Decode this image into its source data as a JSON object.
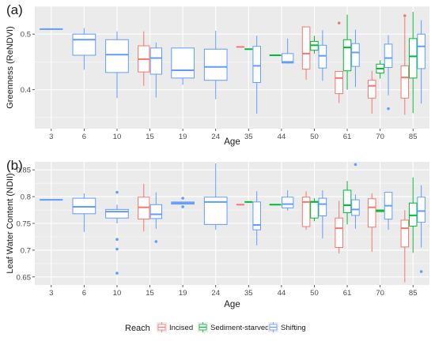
{
  "figure": {
    "legend_title": "Reach",
    "legend_entries": [
      "Incised",
      "Sediment-starved",
      "Shifting"
    ],
    "colors": {
      "Incised": "#F8766D",
      "Sediment-starved": "#00BA38",
      "Shifting": "#619CFF"
    },
    "panel_bg": "#EBEBEB",
    "grid_color": "#FFFFFF"
  },
  "chart_data": [
    {
      "type": "box",
      "panel_label": "(a)",
      "xlabel": "Age",
      "ylabel": "Greenness (ReNDVI)",
      "categories": [
        "3",
        "6",
        "10",
        "15",
        "19",
        "24",
        "35",
        "44",
        "50",
        "61",
        "70",
        "85"
      ],
      "yticks": [
        0.4,
        0.5
      ],
      "ylim": [
        0.33,
        0.55
      ],
      "grid": true,
      "boxes": [
        {
          "cat": "3",
          "reach": "Shifting",
          "min": 0.509,
          "q1": 0.509,
          "median": 0.509,
          "q3": 0.509,
          "max": 0.509,
          "outliers": []
        },
        {
          "cat": "6",
          "reach": "Shifting",
          "min": 0.436,
          "q1": 0.462,
          "median": 0.49,
          "q3": 0.5,
          "max": 0.511,
          "outliers": []
        },
        {
          "cat": "10",
          "reach": "Shifting",
          "min": 0.385,
          "q1": 0.431,
          "median": 0.463,
          "q3": 0.49,
          "max": 0.505,
          "outliers": []
        },
        {
          "cat": "15",
          "reach": "Incised",
          "min": 0.407,
          "q1": 0.432,
          "median": 0.455,
          "q3": 0.479,
          "max": 0.505,
          "outliers": []
        },
        {
          "cat": "15",
          "reach": "Shifting",
          "min": 0.386,
          "q1": 0.428,
          "median": 0.457,
          "q3": 0.475,
          "max": 0.485,
          "outliers": []
        },
        {
          "cat": "19",
          "reach": "Shifting",
          "min": 0.409,
          "q1": 0.421,
          "median": 0.435,
          "q3": 0.475,
          "max": 0.475,
          "outliers": []
        },
        {
          "cat": "24",
          "reach": "Shifting",
          "min": 0.383,
          "q1": 0.417,
          "median": 0.441,
          "q3": 0.473,
          "max": 0.506,
          "outliers": []
        },
        {
          "cat": "35",
          "reach": "Incised",
          "min": 0.477,
          "q1": 0.477,
          "median": 0.477,
          "q3": 0.477,
          "max": 0.477,
          "outliers": []
        },
        {
          "cat": "35",
          "reach": "Sediment-starved",
          "min": 0.473,
          "q1": 0.473,
          "median": 0.473,
          "q3": 0.473,
          "max": 0.473,
          "outliers": []
        },
        {
          "cat": "35",
          "reach": "Shifting",
          "min": 0.357,
          "q1": 0.413,
          "median": 0.443,
          "q3": 0.478,
          "max": 0.497,
          "outliers": []
        },
        {
          "cat": "44",
          "reach": "Sediment-starved",
          "min": 0.462,
          "q1": 0.462,
          "median": 0.462,
          "q3": 0.462,
          "max": 0.462,
          "outliers": []
        },
        {
          "cat": "44",
          "reach": "Shifting",
          "min": 0.447,
          "q1": 0.448,
          "median": 0.45,
          "q3": 0.465,
          "max": 0.492,
          "outliers": []
        },
        {
          "cat": "50",
          "reach": "Incised",
          "min": 0.418,
          "q1": 0.437,
          "median": 0.465,
          "q3": 0.513,
          "max": 0.513,
          "outliers": []
        },
        {
          "cat": "50",
          "reach": "Sediment-starved",
          "min": 0.465,
          "q1": 0.471,
          "median": 0.48,
          "q3": 0.487,
          "max": 0.497,
          "outliers": []
        },
        {
          "cat": "50",
          "reach": "Shifting",
          "min": 0.416,
          "q1": 0.439,
          "median": 0.461,
          "q3": 0.48,
          "max": 0.507,
          "outliers": []
        },
        {
          "cat": "61",
          "reach": "Incised",
          "min": 0.376,
          "q1": 0.393,
          "median": 0.421,
          "q3": 0.433,
          "max": 0.433,
          "outliers": [
            0.52
          ]
        },
        {
          "cat": "61",
          "reach": "Sediment-starved",
          "min": 0.4,
          "q1": 0.434,
          "median": 0.476,
          "q3": 0.49,
          "max": 0.535,
          "outliers": []
        },
        {
          "cat": "61",
          "reach": "Shifting",
          "min": 0.405,
          "q1": 0.442,
          "median": 0.467,
          "q3": 0.483,
          "max": 0.508,
          "outliers": []
        },
        {
          "cat": "70",
          "reach": "Incised",
          "min": 0.357,
          "q1": 0.385,
          "median": 0.407,
          "q3": 0.417,
          "max": 0.434,
          "outliers": []
        },
        {
          "cat": "70",
          "reach": "Sediment-starved",
          "min": 0.42,
          "q1": 0.43,
          "median": 0.438,
          "q3": 0.446,
          "max": 0.453,
          "outliers": []
        },
        {
          "cat": "70",
          "reach": "Shifting",
          "min": 0.39,
          "q1": 0.44,
          "median": 0.457,
          "q3": 0.482,
          "max": 0.498,
          "outliers": [
            0.366
          ]
        },
        {
          "cat": "85",
          "reach": "Incised",
          "min": 0.355,
          "q1": 0.385,
          "median": 0.422,
          "q3": 0.443,
          "max": 0.53,
          "outliers": [
            0.533
          ]
        },
        {
          "cat": "85",
          "reach": "Sediment-starved",
          "min": 0.358,
          "q1": 0.421,
          "median": 0.46,
          "q3": 0.492,
          "max": 0.54,
          "outliers": []
        },
        {
          "cat": "85",
          "reach": "Shifting",
          "min": 0.375,
          "q1": 0.438,
          "median": 0.478,
          "q3": 0.5,
          "max": 0.525,
          "outliers": []
        }
      ]
    },
    {
      "type": "box",
      "panel_label": "(b)",
      "xlabel": "Age",
      "ylabel": "Leaf Water Content (NDII)",
      "categories": [
        "3",
        "6",
        "10",
        "15",
        "19",
        "24",
        "35",
        "44",
        "50",
        "61",
        "70",
        "85"
      ],
      "yticks": [
        0.65,
        0.7,
        0.75,
        0.8,
        0.85
      ],
      "ylim": [
        0.635,
        0.865
      ],
      "grid": true,
      "boxes": [
        {
          "cat": "3",
          "reach": "Shifting",
          "min": 0.794,
          "q1": 0.794,
          "median": 0.794,
          "q3": 0.794,
          "max": 0.794,
          "outliers": []
        },
        {
          "cat": "6",
          "reach": "Shifting",
          "min": 0.734,
          "q1": 0.768,
          "median": 0.781,
          "q3": 0.797,
          "max": 0.806,
          "outliers": []
        },
        {
          "cat": "10",
          "reach": "Shifting",
          "min": 0.75,
          "q1": 0.76,
          "median": 0.772,
          "q3": 0.776,
          "max": 0.785,
          "outliers": [
            0.808,
            0.72,
            0.702,
            0.657
          ]
        },
        {
          "cat": "15",
          "reach": "Incised",
          "min": 0.735,
          "q1": 0.758,
          "median": 0.78,
          "q3": 0.799,
          "max": 0.824,
          "outliers": []
        },
        {
          "cat": "15",
          "reach": "Shifting",
          "min": 0.74,
          "q1": 0.759,
          "median": 0.767,
          "q3": 0.785,
          "max": 0.808,
          "outliers": [
            0.716
          ]
        },
        {
          "cat": "19",
          "reach": "Shifting",
          "min": 0.786,
          "q1": 0.786,
          "median": 0.788,
          "q3": 0.79,
          "max": 0.79,
          "outliers": [
            0.797,
            0.781
          ]
        },
        {
          "cat": "24",
          "reach": "Shifting",
          "min": 0.738,
          "q1": 0.748,
          "median": 0.79,
          "q3": 0.799,
          "max": 0.862,
          "outliers": []
        },
        {
          "cat": "35",
          "reach": "Incised",
          "min": 0.785,
          "q1": 0.785,
          "median": 0.785,
          "q3": 0.785,
          "max": 0.785,
          "outliers": []
        },
        {
          "cat": "35",
          "reach": "Sediment-starved",
          "min": 0.79,
          "q1": 0.79,
          "median": 0.79,
          "q3": 0.79,
          "max": 0.79,
          "outliers": []
        },
        {
          "cat": "35",
          "reach": "Shifting",
          "min": 0.709,
          "q1": 0.738,
          "median": 0.747,
          "q3": 0.79,
          "max": 0.81,
          "outliers": []
        },
        {
          "cat": "44",
          "reach": "Sediment-starved",
          "min": 0.785,
          "q1": 0.785,
          "median": 0.785,
          "q3": 0.785,
          "max": 0.785,
          "outliers": []
        },
        {
          "cat": "44",
          "reach": "Shifting",
          "min": 0.774,
          "q1": 0.779,
          "median": 0.786,
          "q3": 0.799,
          "max": 0.812,
          "outliers": []
        },
        {
          "cat": "50",
          "reach": "Incised",
          "min": 0.738,
          "q1": 0.744,
          "median": 0.79,
          "q3": 0.799,
          "max": 0.81,
          "outliers": []
        },
        {
          "cat": "50",
          "reach": "Sediment-starved",
          "min": 0.754,
          "q1": 0.76,
          "median": 0.79,
          "q3": 0.791,
          "max": 0.797,
          "outliers": []
        },
        {
          "cat": "50",
          "reach": "Shifting",
          "min": 0.722,
          "q1": 0.764,
          "median": 0.786,
          "q3": 0.797,
          "max": 0.812,
          "outliers": []
        },
        {
          "cat": "61",
          "reach": "Incised",
          "min": 0.694,
          "q1": 0.705,
          "median": 0.741,
          "q3": 0.76,
          "max": 0.792,
          "outliers": []
        },
        {
          "cat": "61",
          "reach": "Sediment-starved",
          "min": 0.748,
          "q1": 0.77,
          "median": 0.784,
          "q3": 0.812,
          "max": 0.829,
          "outliers": []
        },
        {
          "cat": "61",
          "reach": "Shifting",
          "min": 0.74,
          "q1": 0.765,
          "median": 0.776,
          "q3": 0.794,
          "max": 0.804,
          "outliers": [
            0.86
          ]
        },
        {
          "cat": "70",
          "reach": "Incised",
          "min": 0.697,
          "q1": 0.743,
          "median": 0.78,
          "q3": 0.796,
          "max": 0.806,
          "outliers": []
        },
        {
          "cat": "70",
          "reach": "Sediment-starved",
          "min": 0.772,
          "q1": 0.772,
          "median": 0.774,
          "q3": 0.775,
          "max": 0.775,
          "outliers": []
        },
        {
          "cat": "70",
          "reach": "Shifting",
          "min": 0.738,
          "q1": 0.758,
          "median": 0.783,
          "q3": 0.808,
          "max": 0.808,
          "outliers": []
        },
        {
          "cat": "85",
          "reach": "Incised",
          "min": 0.64,
          "q1": 0.706,
          "median": 0.741,
          "q3": 0.756,
          "max": 0.775,
          "outliers": []
        },
        {
          "cat": "85",
          "reach": "Sediment-starved",
          "min": 0.695,
          "q1": 0.745,
          "median": 0.765,
          "q3": 0.788,
          "max": 0.836,
          "outliers": []
        },
        {
          "cat": "85",
          "reach": "Shifting",
          "min": 0.705,
          "q1": 0.752,
          "median": 0.773,
          "q3": 0.799,
          "max": 0.821,
          "outliers": [
            0.66
          ]
        }
      ]
    }
  ]
}
